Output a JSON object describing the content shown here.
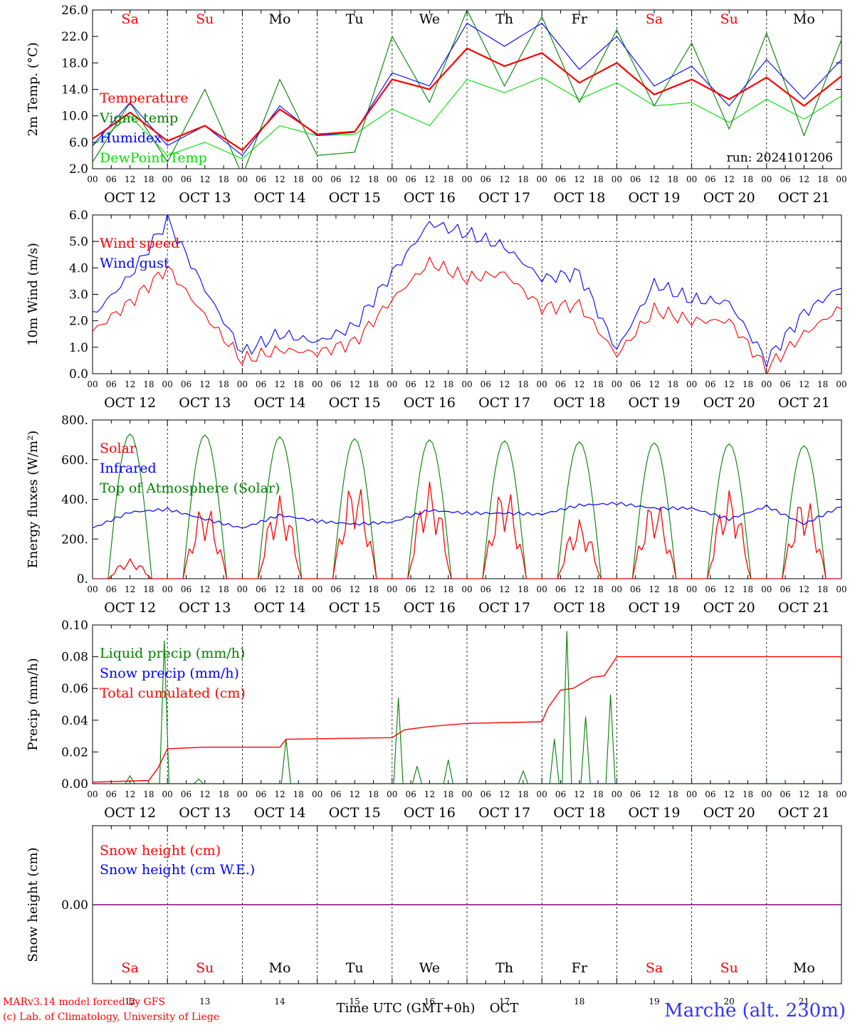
{
  "title_right": "Marche (alt. 230m)",
  "credits": [
    "MARv3.14 model forced by GFS",
    "(c) Lab. of Climatology, University of Liege"
  ],
  "xaxis_bottom_label": "Time UTC (GMT+0h)",
  "xaxis_bottom_month": "OCT",
  "days": [
    {
      "abbr": "Sa",
      "date": "OCT 12",
      "num": "12",
      "weekend": true
    },
    {
      "abbr": "Su",
      "date": "OCT 13",
      "num": "13",
      "weekend": true
    },
    {
      "abbr": "Mo",
      "date": "OCT 14",
      "num": "14",
      "weekend": false
    },
    {
      "abbr": "Tu",
      "date": "OCT 15",
      "num": "15",
      "weekend": false
    },
    {
      "abbr": "We",
      "date": "OCT 16",
      "num": "16",
      "weekend": false
    },
    {
      "abbr": "Th",
      "date": "OCT 17",
      "num": "17",
      "weekend": false
    },
    {
      "abbr": "Fr",
      "date": "OCT 18",
      "num": "18",
      "weekend": false
    },
    {
      "abbr": "Sa",
      "date": "OCT 19",
      "num": "19",
      "weekend": true
    },
    {
      "abbr": "Su",
      "date": "OCT 20",
      "num": "20",
      "weekend": true
    },
    {
      "abbr": "Mo",
      "date": "OCT 21",
      "num": "21",
      "weekend": false
    }
  ],
  "hour_ticks": [
    "00",
    "06",
    "12",
    "18"
  ],
  "colors": {
    "red": "#ff0000",
    "green": "#008000",
    "blue": "#0000ff",
    "lightgreen": "#00e000",
    "purple": "#800080",
    "weekend": "#ff0000",
    "weekday": "#000000",
    "title": "#3333ff"
  },
  "chart_data": [
    {
      "id": "temp",
      "type": "line",
      "ylabel": "2m Temp. (°C)",
      "ylim": [
        2,
        26
      ],
      "yticks": [
        "2.0",
        "6.0",
        "10.0",
        "14.0",
        "18.0",
        "22.0",
        "26.0"
      ],
      "yticks_values": [
        2,
        6,
        10,
        14,
        18,
        22,
        26
      ],
      "annotation": "run: 2024101206",
      "x_hours": [
        0,
        12,
        24,
        36,
        48,
        60,
        72,
        84,
        96,
        108,
        120,
        132,
        144,
        156,
        168,
        180,
        192,
        204,
        216,
        228,
        240
      ],
      "series": [
        {
          "name": "Temperature",
          "color": "red",
          "values": [
            6.5,
            10.5,
            6.2,
            8.5,
            4.8,
            11,
            7.2,
            7.6,
            15.5,
            14,
            20.2,
            17.5,
            19.5,
            15,
            18,
            13.2,
            15.5,
            12.5,
            15.8,
            11.5,
            16
          ]
        },
        {
          "name": "Vigne temp",
          "color": "green",
          "values": [
            3,
            12,
            3,
            14,
            1,
            15.5,
            4,
            4.5,
            22,
            12,
            26,
            14.5,
            25,
            12,
            23,
            11.5,
            21,
            8,
            22.5,
            7,
            21.5
          ]
        },
        {
          "name": "Humidex",
          "color": "blue",
          "values": [
            5.5,
            12,
            5.5,
            8.5,
            4,
            11.5,
            7,
            7.5,
            16.5,
            14.5,
            24,
            20.5,
            24,
            17,
            22,
            14.5,
            17.5,
            11.5,
            18.5,
            12.5,
            18.5
          ]
        },
        {
          "name": "DewPoint Temp",
          "color": "lightgreen",
          "values": [
            5.5,
            10,
            4,
            6,
            3.5,
            8.5,
            7,
            7.2,
            11,
            8.5,
            15.5,
            13.5,
            15.8,
            12.5,
            15,
            11.5,
            12,
            9,
            12.5,
            9.5,
            13
          ]
        }
      ]
    },
    {
      "id": "wind",
      "type": "line",
      "ylabel": "10m Wind (m/s)",
      "ylim": [
        0,
        6
      ],
      "yticks": [
        "0.0",
        "1.0",
        "2.0",
        "3.0",
        "4.0",
        "5.0",
        "6.0"
      ],
      "yticks_values": [
        0,
        1,
        2,
        3,
        4,
        5,
        6
      ],
      "dashed_line": 5,
      "x_hours": [
        0,
        12,
        24,
        36,
        48,
        60,
        72,
        84,
        96,
        108,
        120,
        132,
        144,
        156,
        168,
        180,
        192,
        204,
        216,
        228,
        240
      ],
      "series": [
        {
          "name": "Wind speed",
          "color": "red",
          "values": [
            1.6,
            2.7,
            4,
            2.2,
            0.5,
            0.9,
            0.8,
            1.2,
            2.8,
            4.2,
            3.6,
            3.8,
            2.5,
            2.6,
            0.7,
            2.4,
            2.0,
            2.0,
            0.2,
            1.5,
            2.5
          ]
        },
        {
          "name": "Wind gust",
          "color": "blue",
          "values": [
            2.2,
            3.7,
            5.8,
            3.2,
            0.8,
            1.5,
            1.2,
            1.8,
            3.8,
            5.7,
            5.3,
            4.8,
            3.6,
            3.8,
            0.9,
            3.4,
            2.8,
            2.7,
            0.5,
            2.3,
            3.3
          ]
        }
      ]
    },
    {
      "id": "energy",
      "type": "line",
      "ylabel": "Energy fluxes (W/m²)",
      "ylim": [
        0,
        800
      ],
      "yticks": [
        "0.",
        "200.",
        "400.",
        "600.",
        "800."
      ],
      "yticks_values": [
        0,
        200,
        400,
        600,
        800
      ],
      "solar_peaks": [
        100,
        380,
        420,
        500,
        490,
        470,
        300,
        400,
        450,
        420
      ],
      "toa_peaks": [
        730,
        725,
        715,
        705,
        700,
        695,
        690,
        685,
        680,
        670
      ],
      "infrared_x": [
        0,
        12,
        24,
        36,
        48,
        60,
        72,
        84,
        96,
        108,
        120,
        132,
        144,
        156,
        168,
        180,
        192,
        204,
        216,
        228,
        240
      ],
      "series": [
        {
          "name": "Solar",
          "color": "red"
        },
        {
          "name": "Infrared",
          "color": "blue",
          "values": [
            255,
            335,
            350,
            300,
            255,
            320,
            290,
            275,
            285,
            345,
            330,
            330,
            325,
            370,
            380,
            355,
            355,
            300,
            365,
            275,
            365
          ]
        },
        {
          "name": "Top of Atmosphere (Solar)",
          "color": "green"
        }
      ]
    },
    {
      "id": "precip",
      "type": "line",
      "ylabel": "Precip (mm/h)",
      "ylim": [
        0,
        0.1
      ],
      "yticks": [
        "0.00",
        "0.02",
        "0.04",
        "0.06",
        "0.08",
        "0.10"
      ],
      "yticks_values": [
        0,
        0.02,
        0.04,
        0.06,
        0.08,
        0.1
      ],
      "liquid_events": [
        [
          12,
          0.005
        ],
        [
          23,
          0.09
        ],
        [
          34,
          0.003
        ],
        [
          62,
          0.028
        ],
        [
          98,
          0.054
        ],
        [
          104,
          0.011
        ],
        [
          114,
          0.015
        ],
        [
          138,
          0.008
        ],
        [
          148,
          0.028
        ],
        [
          152,
          0.096
        ],
        [
          158,
          0.042
        ],
        [
          166,
          0.056
        ]
      ],
      "cumulated_x": [
        0,
        18,
        21,
        24,
        36,
        60,
        62,
        96,
        100,
        108,
        120,
        144,
        146,
        150,
        154,
        160,
        164,
        168,
        240
      ],
      "cumulated_y": [
        0.001,
        0.002,
        0.01,
        0.022,
        0.023,
        0.023,
        0.028,
        0.029,
        0.034,
        0.036,
        0.038,
        0.039,
        0.048,
        0.059,
        0.06,
        0.067,
        0.068,
        0.08,
        0.08
      ],
      "series": [
        {
          "name": "Liquid precip (mm/h)",
          "color": "green"
        },
        {
          "name": "Snow precip (mm/h)",
          "color": "blue"
        },
        {
          "name": "Total cumulated (cm)",
          "color": "red"
        }
      ]
    },
    {
      "id": "snow",
      "type": "line",
      "ylabel": "Snow height (cm)",
      "yticks": [
        "0.00"
      ],
      "series": [
        {
          "name": "Snow height (cm)",
          "color": "red",
          "values": [
            0,
            0
          ]
        },
        {
          "name": "Snow height (cm W.E.)",
          "color": "blue",
          "values": [
            0,
            0
          ]
        }
      ]
    }
  ]
}
